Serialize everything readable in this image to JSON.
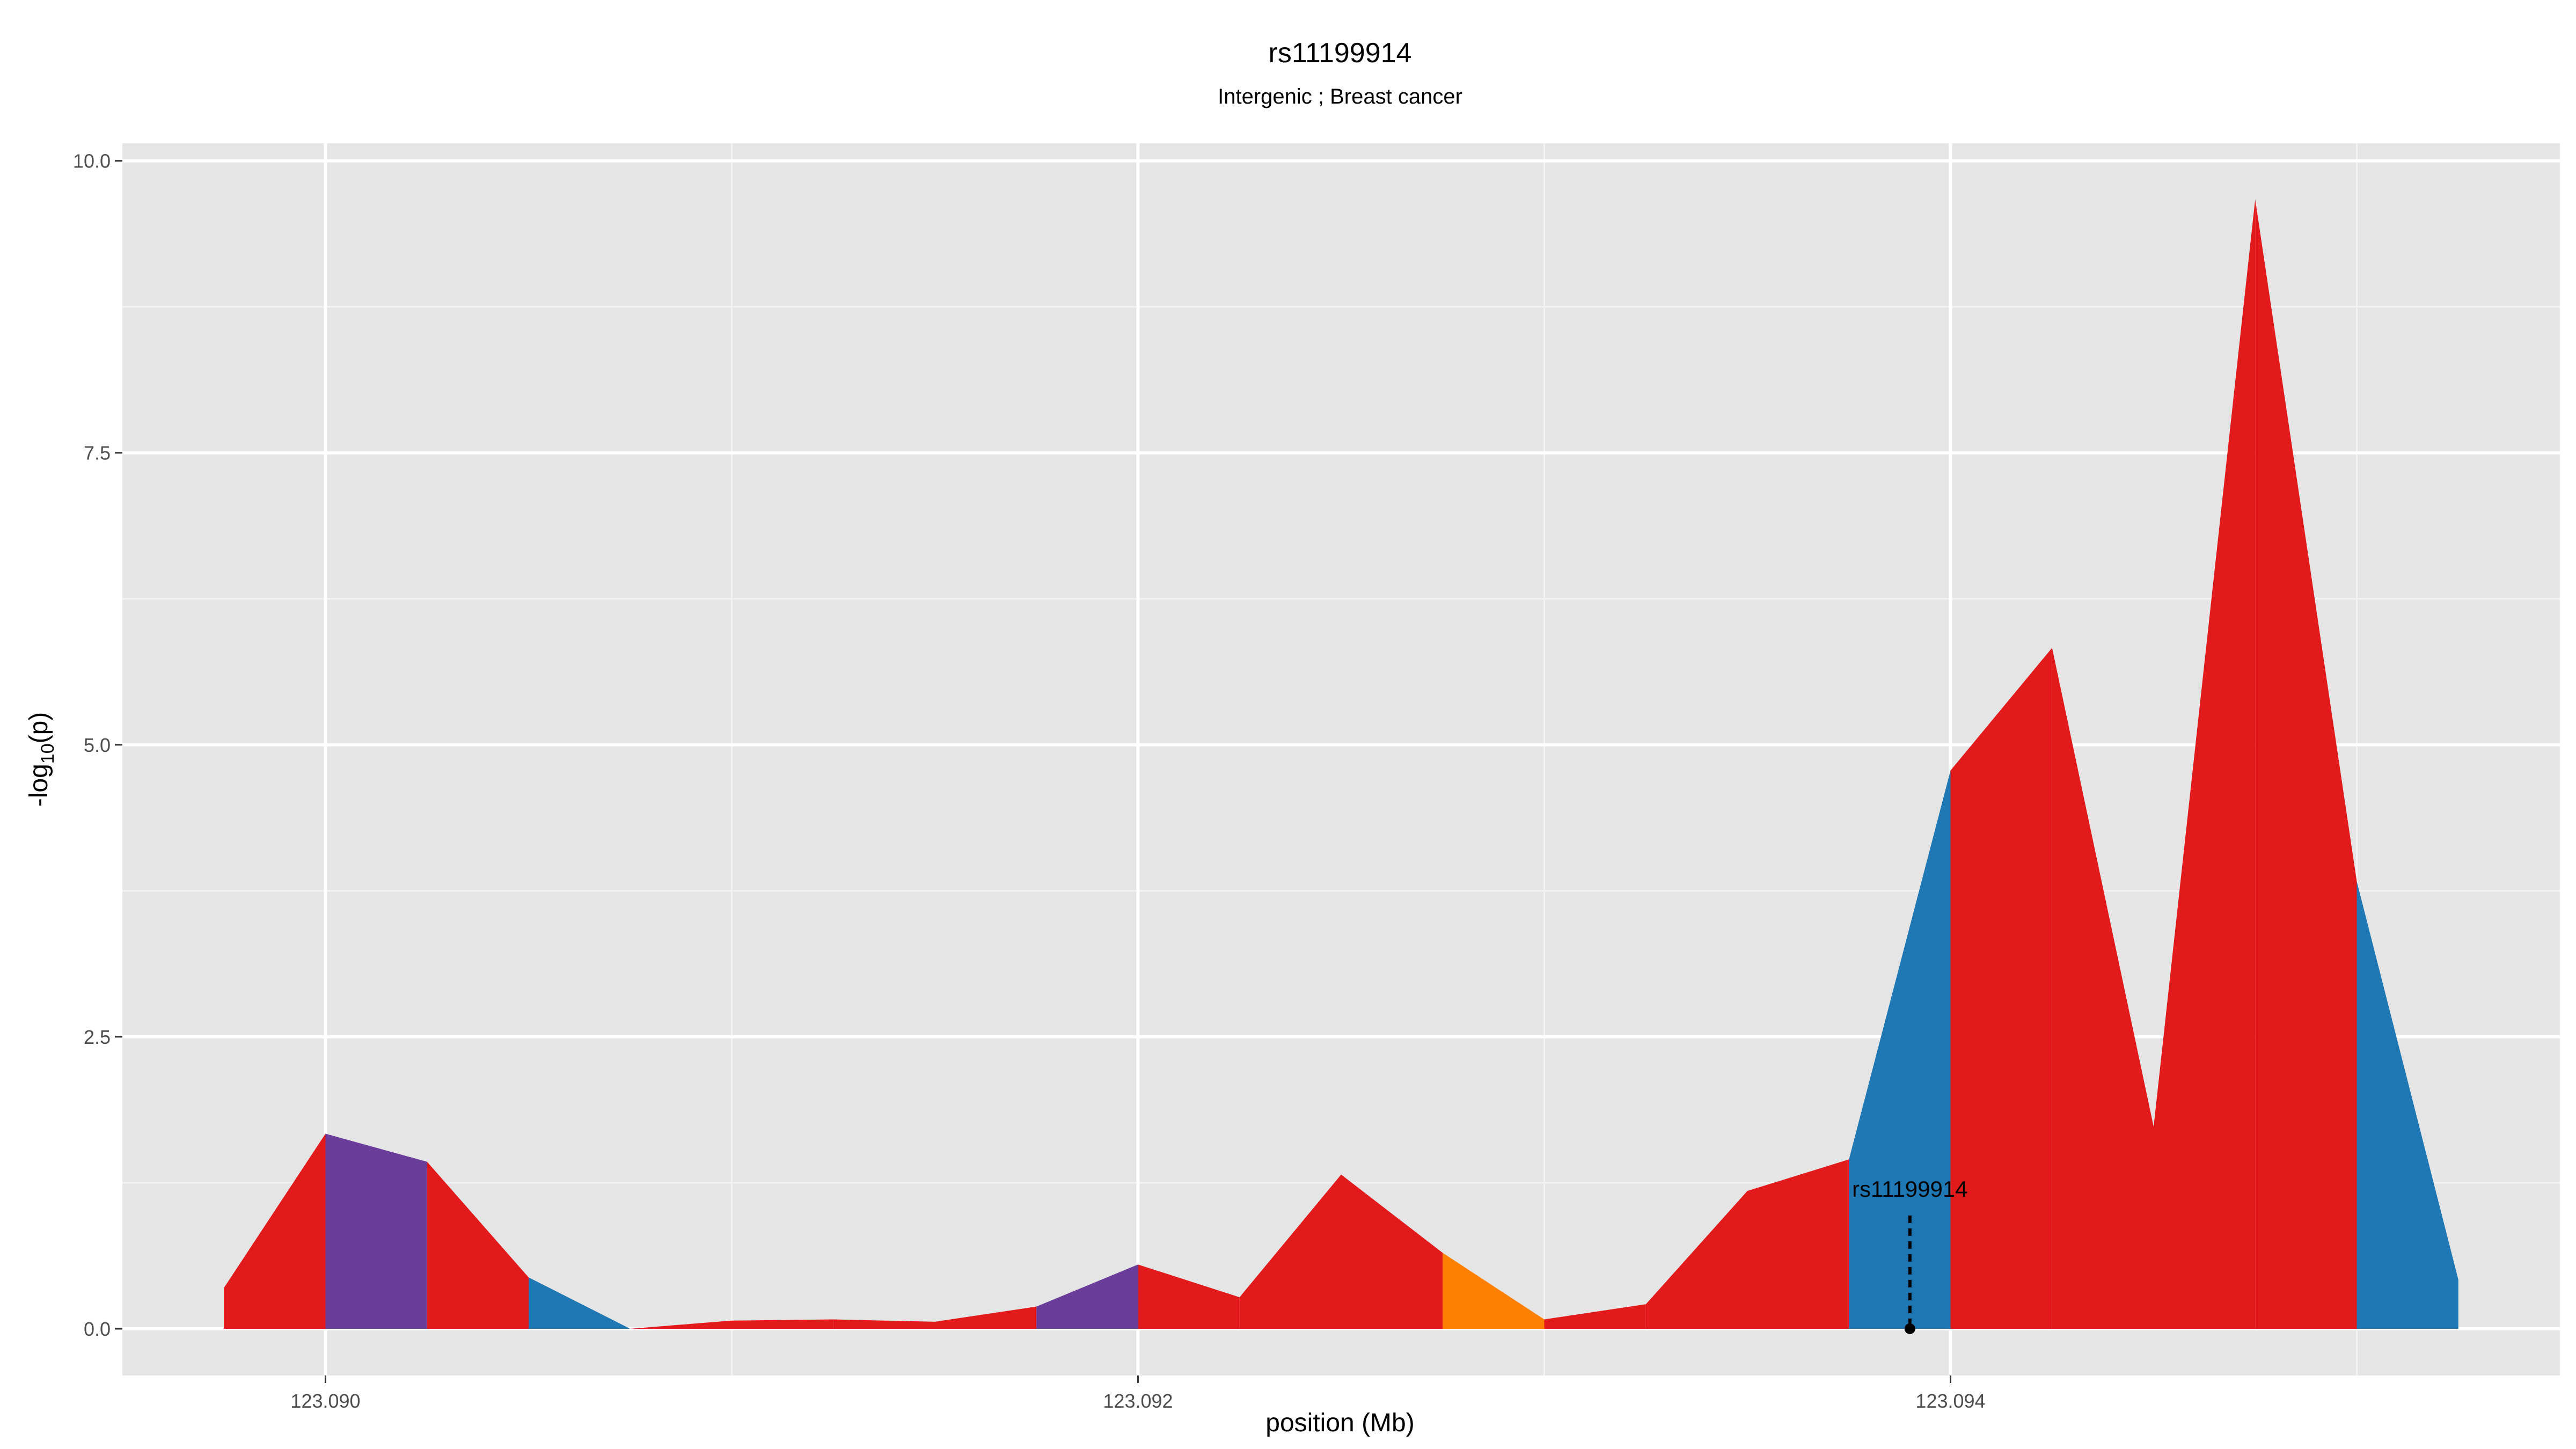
{
  "chart_data": {
    "type": "area",
    "title": "rs11199914",
    "subtitle": "Intergenic ; Breast cancer",
    "xlabel": "position (Mb)",
    "ylabel_prefix": "-log",
    "ylabel_sub": "10",
    "ylabel_suffix": "(p)",
    "xlim": [
      123.0895,
      123.0955
    ],
    "ylim": [
      -0.4,
      10.15
    ],
    "x_ticks": [
      {
        "value": 123.09,
        "label": "123.090"
      },
      {
        "value": 123.092,
        "label": "123.092"
      },
      {
        "value": 123.094,
        "label": "123.094"
      }
    ],
    "y_ticks": [
      {
        "value": 0.0,
        "label": "0.0"
      },
      {
        "value": 2.5,
        "label": "2.5"
      },
      {
        "value": 5.0,
        "label": "5.0"
      },
      {
        "value": 7.5,
        "label": "7.5"
      },
      {
        "value": 10.0,
        "label": "10.0"
      }
    ],
    "grid": true,
    "points": [
      {
        "x": 123.08975,
        "y": 0.35
      },
      {
        "x": 123.09,
        "y": 1.67
      },
      {
        "x": 123.09025,
        "y": 1.43
      },
      {
        "x": 123.0905,
        "y": 0.44
      },
      {
        "x": 123.09075,
        "y": 0.0
      },
      {
        "x": 123.091,
        "y": 0.07
      },
      {
        "x": 123.09125,
        "y": 0.08
      },
      {
        "x": 123.0915,
        "y": 0.06
      },
      {
        "x": 123.09175,
        "y": 0.19
      },
      {
        "x": 123.092,
        "y": 0.55
      },
      {
        "x": 123.09225,
        "y": 0.27
      },
      {
        "x": 123.0925,
        "y": 1.32
      },
      {
        "x": 123.09275,
        "y": 0.65
      },
      {
        "x": 123.093,
        "y": 0.08
      },
      {
        "x": 123.09325,
        "y": 0.21
      },
      {
        "x": 123.0935,
        "y": 1.18
      },
      {
        "x": 123.09375,
        "y": 1.45
      },
      {
        "x": 123.094,
        "y": 4.78
      },
      {
        "x": 123.09425,
        "y": 5.83
      },
      {
        "x": 123.0945,
        "y": 1.73
      },
      {
        "x": 123.09475,
        "y": 9.67
      },
      {
        "x": 123.095,
        "y": 3.83
      },
      {
        "x": 123.09525,
        "y": 0.42
      }
    ],
    "segment_colors": [
      "#e31a1c",
      "#6a3d9a",
      "#e31a1c",
      "#1f78b4",
      "#e31a1c",
      "#e31a1c",
      "#e31a1c",
      "#e31a1c",
      "#6a3d9a",
      "#e31a1c",
      "#e31a1c",
      "#e31a1c",
      "#ff7f00",
      "#e31a1c",
      "#e31a1c",
      "#e31a1c",
      "#1f78b4",
      "#e31a1c",
      "#e31a1c",
      "#e31a1c",
      "#e31a1c",
      "#1f78b4"
    ],
    "highlight": {
      "label": "rs11199914",
      "x": 123.0939,
      "y": 0.0,
      "line_top": 0.97
    },
    "colors": {
      "panel": "#e5e5e5",
      "grid_major": "#ffffff",
      "grid_minor": "#f2f2f2"
    }
  }
}
